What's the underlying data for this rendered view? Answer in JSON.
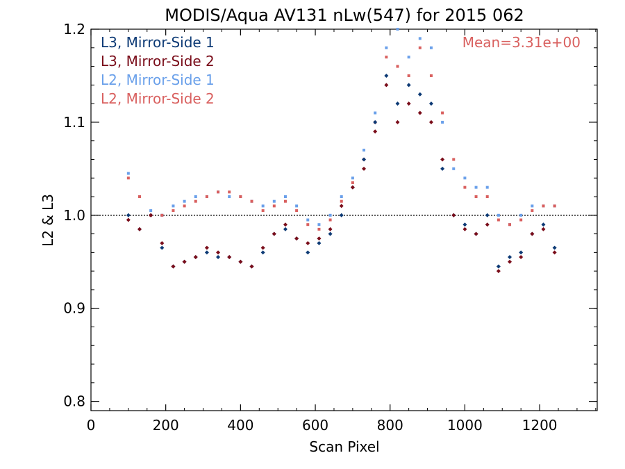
{
  "chart_data": {
    "type": "scatter",
    "title": "MODIS/Aqua AV131 nLw(547) for 2015 062",
    "xlabel": "Scan Pixel",
    "ylabel": "L2 & L3",
    "xlim": [
      0,
      1354
    ],
    "ylim": [
      0.79,
      1.2
    ],
    "x_ticks": [
      0,
      200,
      400,
      600,
      800,
      1000,
      1200
    ],
    "x_tick_labels": [
      "0",
      "200",
      "400",
      "600",
      "800",
      "1000",
      "1200"
    ],
    "y_ticks": [
      0.8,
      0.9,
      1.0,
      1.1,
      1.2
    ],
    "y_tick_labels": [
      "0.8",
      "0.9",
      "1.0",
      "1.1",
      "1.2"
    ],
    "reference_line": {
      "y": 1.0,
      "style": "dotted"
    },
    "annotation": {
      "text": "Mean=3.31e+00",
      "color": "#d9605f"
    },
    "legend_position": "top-left",
    "series": [
      {
        "name": "L3, Mirror-Side 1",
        "color": "#0d3a75",
        "x": [
          100,
          130,
          160,
          190,
          220,
          250,
          280,
          310,
          340,
          370,
          400,
          430,
          460,
          490,
          520,
          550,
          580,
          610,
          640,
          670,
          700,
          730,
          760,
          790,
          820,
          850,
          880,
          910,
          940,
          970,
          1000,
          1030,
          1060,
          1090,
          1120,
          1150,
          1180,
          1210,
          1240
        ],
        "y": [
          1.0,
          0.985,
          1.0,
          0.965,
          0.945,
          0.95,
          0.955,
          0.96,
          0.955,
          0.955,
          0.95,
          0.945,
          0.96,
          0.98,
          0.985,
          0.975,
          0.96,
          0.97,
          0.98,
          1.0,
          1.03,
          1.06,
          1.1,
          1.15,
          1.12,
          1.14,
          1.13,
          1.12,
          1.05,
          1.0,
          0.99,
          0.98,
          1.0,
          0.945,
          0.955,
          0.96,
          0.98,
          0.99,
          0.965
        ]
      },
      {
        "name": "L3, Mirror-Side 2",
        "color": "#7a0d1a",
        "x": [
          100,
          130,
          160,
          190,
          220,
          250,
          280,
          310,
          340,
          370,
          400,
          430,
          460,
          490,
          520,
          550,
          580,
          610,
          640,
          670,
          700,
          730,
          760,
          790,
          820,
          850,
          880,
          910,
          940,
          970,
          1000,
          1030,
          1060,
          1090,
          1120,
          1150,
          1180,
          1210,
          1240
        ],
        "y": [
          0.995,
          0.985,
          1.0,
          0.97,
          0.945,
          0.95,
          0.955,
          0.965,
          0.96,
          0.955,
          0.95,
          0.945,
          0.965,
          0.98,
          0.99,
          0.975,
          0.97,
          0.975,
          0.985,
          1.01,
          1.03,
          1.05,
          1.09,
          1.14,
          1.1,
          1.12,
          1.11,
          1.1,
          1.06,
          1.0,
          0.985,
          0.98,
          0.99,
          0.94,
          0.95,
          0.955,
          0.98,
          0.985,
          0.96
        ]
      },
      {
        "name": "L2, Mirror-Side 1",
        "color": "#6aa0ea",
        "x": [
          100,
          130,
          160,
          190,
          220,
          250,
          280,
          310,
          340,
          370,
          400,
          430,
          460,
          490,
          520,
          550,
          580,
          610,
          640,
          670,
          700,
          730,
          760,
          790,
          820,
          850,
          880,
          910,
          940,
          970,
          1000,
          1030,
          1060,
          1090,
          1120,
          1150,
          1180,
          1210,
          1240
        ],
        "y": [
          1.045,
          1.02,
          1.005,
          1.0,
          1.01,
          1.015,
          1.02,
          1.02,
          1.025,
          1.02,
          1.02,
          1.015,
          1.01,
          1.015,
          1.02,
          1.01,
          0.995,
          0.99,
          1.0,
          1.02,
          1.04,
          1.07,
          1.11,
          1.18,
          1.2,
          1.17,
          1.19,
          1.18,
          1.1,
          1.05,
          1.04,
          1.03,
          1.03,
          1.0,
          0.99,
          1.0,
          1.01,
          1.01,
          1.01
        ]
      },
      {
        "name": "L2, Mirror-Side 2",
        "color": "#d9605f",
        "x": [
          100,
          130,
          160,
          190,
          220,
          250,
          280,
          310,
          340,
          370,
          400,
          430,
          460,
          490,
          520,
          550,
          580,
          610,
          640,
          670,
          700,
          730,
          760,
          790,
          820,
          850,
          880,
          910,
          940,
          970,
          1000,
          1030,
          1060,
          1090,
          1120,
          1150,
          1180,
          1210,
          1240
        ],
        "y": [
          1.04,
          1.02,
          1.0,
          1.0,
          1.005,
          1.01,
          1.015,
          1.02,
          1.025,
          1.025,
          1.02,
          1.015,
          1.005,
          1.01,
          1.015,
          1.005,
          0.99,
          0.985,
          0.995,
          1.015,
          1.035,
          1.06,
          1.1,
          1.17,
          1.16,
          1.15,
          1.18,
          1.15,
          1.11,
          1.06,
          1.03,
          1.02,
          1.02,
          0.995,
          0.99,
          0.995,
          1.005,
          1.01,
          1.01
        ]
      }
    ]
  }
}
